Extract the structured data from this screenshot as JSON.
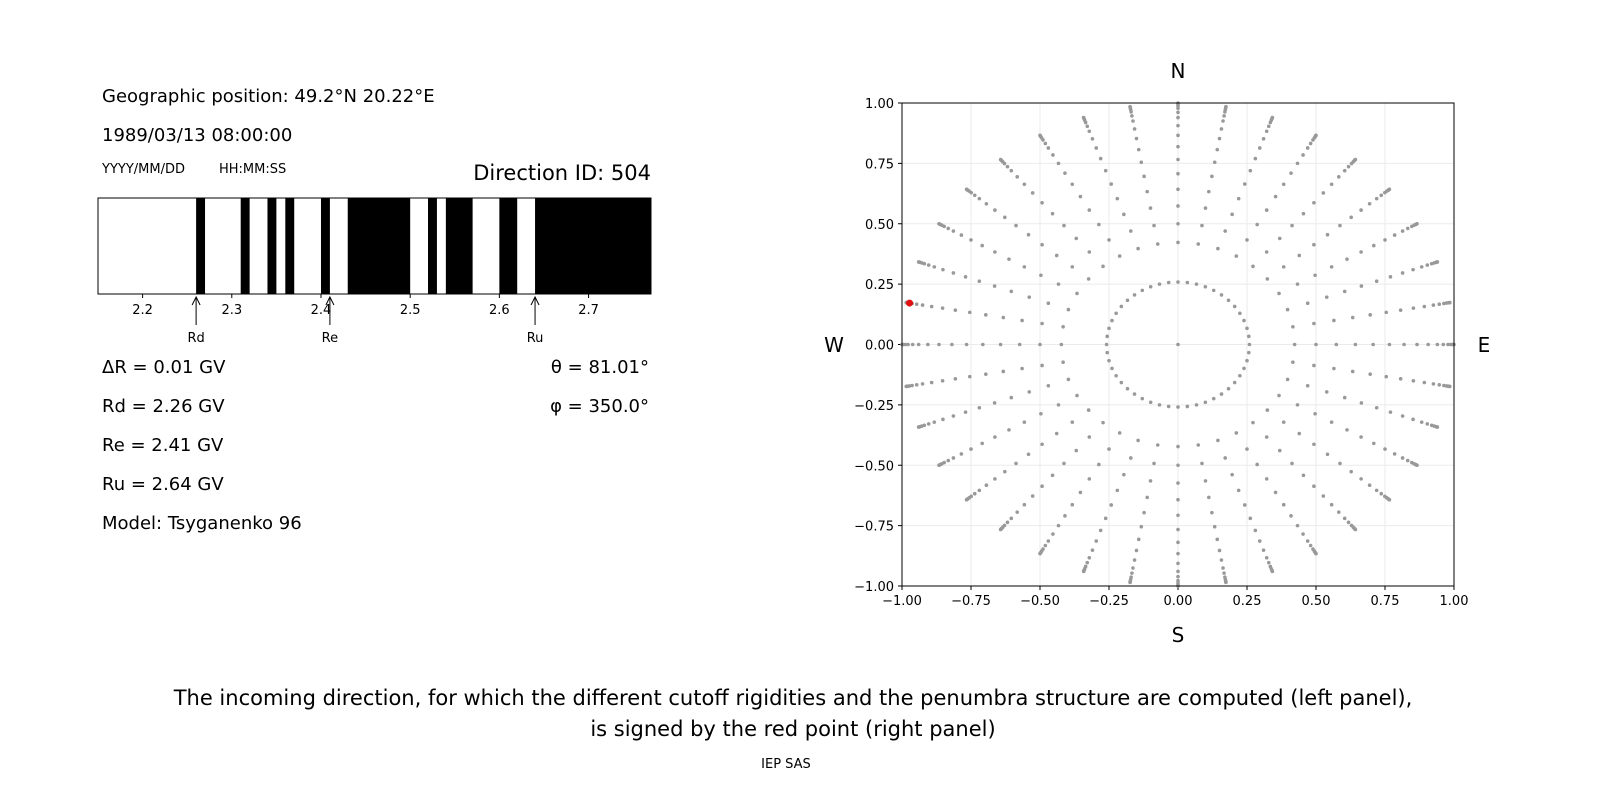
{
  "info": {
    "position": "Geographic position: 49.2°N 20.22°E",
    "datetime": "1989/03/13 08:00:00",
    "date_format": "YYYY/MM/DD",
    "time_format": "HH:MM:SS",
    "direction_id": "Direction ID: 504",
    "results": [
      "ΔR = 0.01 GV",
      "Rd = 2.26 GV",
      "Re = 2.41 GV",
      "Ru = 2.64 GV",
      "Model: Tsyganenko 96"
    ],
    "angles": [
      "θ = 81.01°",
      "φ = 350.0°"
    ]
  },
  "chart_data": [
    {
      "type": "penumbra",
      "xlim": [
        2.15,
        2.77
      ],
      "xticks": [
        2.2,
        2.3,
        2.4,
        2.5,
        2.6,
        2.7
      ],
      "color": "#000000",
      "forbidden": [
        [
          2.26,
          2.27
        ],
        [
          2.31,
          2.32
        ],
        [
          2.34,
          2.35
        ],
        [
          2.36,
          2.37
        ],
        [
          2.4,
          2.41
        ],
        [
          2.43,
          2.5
        ],
        [
          2.52,
          2.53
        ],
        [
          2.54,
          2.57
        ],
        [
          2.6,
          2.62
        ],
        [
          2.64,
          2.77
        ]
      ],
      "arrows": [
        {
          "label": "Rd",
          "value": 2.26
        },
        {
          "label": "Re",
          "value": 2.41
        },
        {
          "label": "Ru",
          "value": 2.64
        }
      ]
    },
    {
      "type": "sky",
      "xlim": [
        -1,
        1
      ],
      "ylim": [
        -1,
        1
      ],
      "grid": true,
      "color": "#999999",
      "xticks": [
        {
          "value": -1,
          "label": "−1.00"
        },
        {
          "value": -0.75,
          "label": "−0.75"
        },
        {
          "value": -0.5,
          "label": "−0.50"
        },
        {
          "value": -0.25,
          "label": "−0.25"
        },
        {
          "value": 0,
          "label": "0.00"
        },
        {
          "value": 0.25,
          "label": "0.25"
        },
        {
          "value": 0.5,
          "label": "0.50"
        },
        {
          "value": 0.75,
          "label": "0.75"
        },
        {
          "value": 1,
          "label": "1.00"
        }
      ],
      "yticks": [
        {
          "value": -1,
          "label": "−1.00"
        },
        {
          "value": -0.75,
          "label": "−0.75"
        },
        {
          "value": -0.5,
          "label": "−0.50"
        },
        {
          "value": -0.25,
          "label": "−0.25"
        },
        {
          "value": 0,
          "label": "0.00"
        },
        {
          "value": 0.25,
          "label": "0.25"
        },
        {
          "value": 0.5,
          "label": "0.50"
        },
        {
          "value": 0.75,
          "label": "0.75"
        },
        {
          "value": 1,
          "label": "1.00"
        }
      ],
      "rings": [
        {
          "theta": 0,
          "phi_step": 360
        },
        {
          "theta": 15,
          "phi_step": 7.5
        },
        {
          "theta": 25,
          "phi_step": 10
        },
        {
          "theta": 30,
          "phi_step": 10
        },
        {
          "theta": 35,
          "phi_step": 10
        },
        {
          "theta": 40,
          "phi_step": 10
        },
        {
          "theta": 45,
          "phi_step": 10
        },
        {
          "theta": 50,
          "phi_step": 10
        },
        {
          "theta": 55,
          "phi_step": 10
        },
        {
          "theta": 60,
          "phi_step": 10
        },
        {
          "theta": 65,
          "phi_step": 10
        },
        {
          "theta": 70,
          "phi_step": 10
        },
        {
          "theta": 74,
          "phi_step": 10
        },
        {
          "theta": 78,
          "phi_step": 10
        },
        {
          "theta": 81,
          "phi_step": 10
        },
        {
          "theta": 84,
          "phi_step": 10
        },
        {
          "theta": 87,
          "phi_step": 10
        },
        {
          "theta": 90,
          "phi_step": 10
        }
      ],
      "highlight": {
        "theta": 81.01,
        "phi": 350,
        "color": "#e01010"
      },
      "compass": {
        "north": "N",
        "south": "S",
        "west": "W",
        "east": "E"
      }
    }
  ],
  "caption": [
    "The incoming direction, for which the different cutoff rigidities and the penumbra structure are computed (left panel),",
    "is signed by the red point (right panel)"
  ],
  "footer": "IEP SAS"
}
